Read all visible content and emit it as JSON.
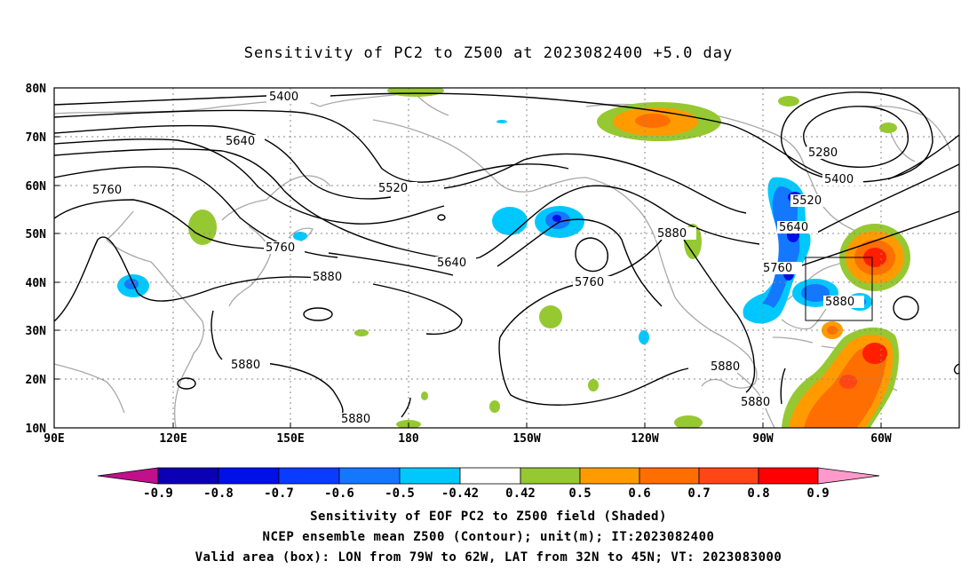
{
  "title": "Sensitivity of PC2 to Z500 at 2023082400 +5.0 day",
  "lon_labels": [
    "90E",
    "120E",
    "150E",
    "180",
    "150W",
    "120W",
    "90W",
    "60W"
  ],
  "lat_labels": [
    "80N",
    "70N",
    "60N",
    "50N",
    "40N",
    "30N",
    "20N",
    "10N"
  ],
  "contour_labels": [
    {
      "value": "5400"
    },
    {
      "value": "5640"
    },
    {
      "value": "5520"
    },
    {
      "value": "5760"
    },
    {
      "value": "5760"
    },
    {
      "value": "5880"
    },
    {
      "value": "5640"
    },
    {
      "value": "5760"
    },
    {
      "value": "5880"
    },
    {
      "value": "5880"
    },
    {
      "value": "5880"
    },
    {
      "value": "5880"
    },
    {
      "value": "5280"
    },
    {
      "value": "5400"
    },
    {
      "value": "5520"
    },
    {
      "value": "5640"
    },
    {
      "value": "5760"
    },
    {
      "value": "5880"
    },
    {
      "value": "5880"
    }
  ],
  "colorbar": {
    "labels": [
      "-0.9",
      "-0.8",
      "-0.7",
      "-0.6",
      "-0.5",
      "-0.42",
      "0.42",
      "0.5",
      "0.6",
      "0.7",
      "0.8",
      "0.9"
    ],
    "colors": [
      "#c0108c",
      "#0b00b4",
      "#0010e6",
      "#0a3cff",
      "#1478ff",
      "#3ca0ff",
      "#00c8ff",
      "#ffffff",
      "#96c832",
      "#ff9b00",
      "#ff6e00",
      "#ff4614",
      "#ff1e00",
      "#ff0000",
      "#ff99cc"
    ]
  },
  "shading_colors": {
    "light_blue": "#00c8ff",
    "mid_blue": "#1478ff",
    "deep_blue": "#0010e6",
    "green": "#96c832",
    "orange": "#ff9b00",
    "dark_orange": "#ff6e00",
    "red": "#ff1e00",
    "coast": "#a0a0a0"
  },
  "captions": {
    "line1": "Sensitivity of EOF PC2 to Z500 field (Shaded)",
    "line2": "NCEP ensemble mean Z500 (Contour); unit(m); IT:2023082400",
    "line3": "Valid area (box): LON from 79W to 62W, LAT from 32N to 45N; VT: 2023083000"
  }
}
